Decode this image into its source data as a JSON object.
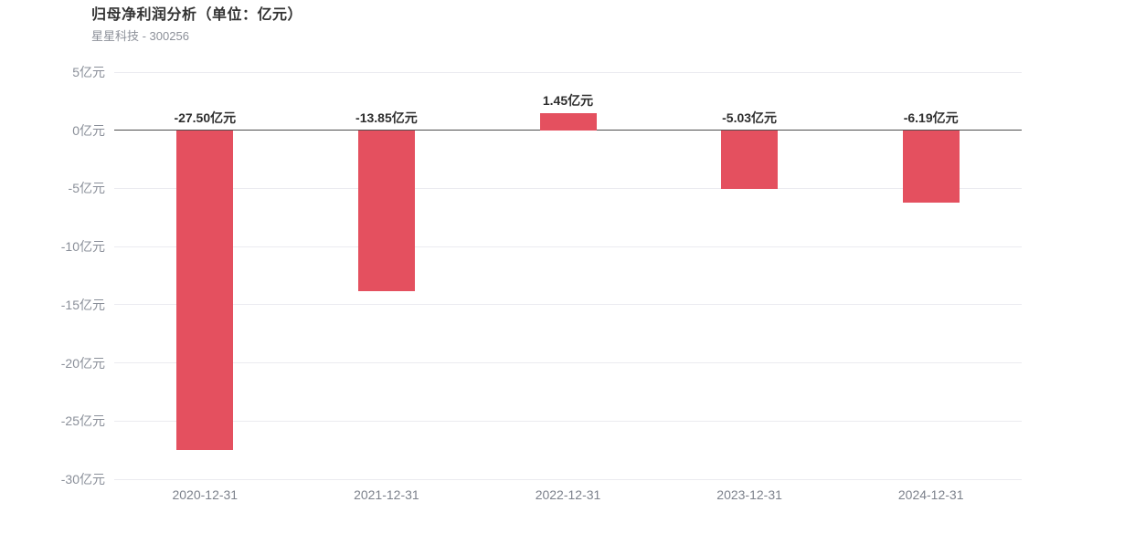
{
  "header": {
    "title": "归母净利润分析（单位：亿元）",
    "subtitle": "星星科技 - 300256"
  },
  "chart_data": {
    "type": "bar",
    "title": "归母净利润分析（单位：亿元）",
    "subtitle": "星星科技 - 300256",
    "unit": "亿元",
    "categories": [
      "2020-12-31",
      "2021-12-31",
      "2022-12-31",
      "2023-12-31",
      "2024-12-31"
    ],
    "values": [
      -27.5,
      -13.85,
      1.45,
      -5.03,
      -6.19
    ],
    "value_labels": [
      "-27.50亿元",
      "-13.85亿元",
      "1.45亿元",
      "-5.03亿元",
      "-6.19亿元"
    ],
    "ylim": [
      -30,
      5
    ],
    "ytick_step": 5,
    "ytick_labels": [
      "5亿元",
      "0亿元",
      "-5亿元",
      "-10亿元",
      "-15亿元",
      "-20亿元",
      "-25亿元",
      "-30亿元"
    ],
    "xlabel": "",
    "ylabel": "",
    "grid": true,
    "legend": "none",
    "colors": {
      "bar": "#e4505f",
      "zero_line": "#4d4d4d",
      "gridline": "#ebebf0",
      "ytick_label": "#8a8f99",
      "xtick_label": "#7d828c",
      "value_label": "#2e2e2e"
    }
  }
}
